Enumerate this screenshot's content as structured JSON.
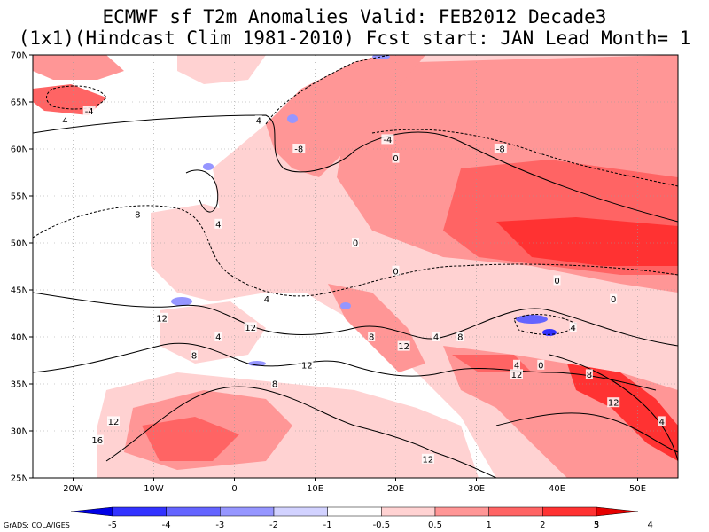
{
  "title": {
    "line1": "ECMWF sf T2m Anomalies Valid: FEB2012 Decade3",
    "line2": "(1x1)(Hindcast Clim 1981-2010) Fcst start: JAN  Lead Month= 1"
  },
  "map": {
    "lon_range": [
      -25,
      55
    ],
    "lat_range": [
      25,
      70
    ],
    "lon_ticks": [
      {
        "lon": -20,
        "label": "20W"
      },
      {
        "lon": -10,
        "label": "10W"
      },
      {
        "lon": 0,
        "label": "0"
      },
      {
        "lon": 10,
        "label": "10E"
      },
      {
        "lon": 20,
        "label": "20E"
      },
      {
        "lon": 30,
        "label": "30E"
      },
      {
        "lon": 40,
        "label": "40E"
      },
      {
        "lon": 50,
        "label": "50E"
      }
    ],
    "lat_ticks": [
      {
        "lat": 70,
        "label": "70N"
      },
      {
        "lat": 65,
        "label": "65N"
      },
      {
        "lat": 60,
        "label": "60N"
      },
      {
        "lat": 55,
        "label": "55N"
      },
      {
        "lat": 50,
        "label": "50N"
      },
      {
        "lat": 45,
        "label": "45N"
      },
      {
        "lat": 40,
        "label": "40N"
      },
      {
        "lat": 35,
        "label": "35N"
      },
      {
        "lat": 30,
        "label": "30N"
      },
      {
        "lat": 25,
        "label": "25N"
      }
    ],
    "grid": "dotted",
    "contour_labels": [
      {
        "lon": -18,
        "lat": 64,
        "text": "-4"
      },
      {
        "lon": -21,
        "lat": 63,
        "text": "4"
      },
      {
        "lon": 3,
        "lat": 63,
        "text": "4"
      },
      {
        "lon": 8,
        "lat": 60,
        "text": "-8"
      },
      {
        "lon": 19,
        "lat": 61,
        "text": "-4"
      },
      {
        "lon": 33,
        "lat": 60,
        "text": "-8"
      },
      {
        "lon": 20,
        "lat": 59,
        "text": "0"
      },
      {
        "lon": -12,
        "lat": 53,
        "text": "8"
      },
      {
        "lon": -2,
        "lat": 52,
        "text": "4"
      },
      {
        "lon": 15,
        "lat": 50,
        "text": "0"
      },
      {
        "lon": 20,
        "lat": 47,
        "text": "0"
      },
      {
        "lon": 40,
        "lat": 46,
        "text": "0"
      },
      {
        "lon": 47,
        "lat": 44,
        "text": "0"
      },
      {
        "lon": 4,
        "lat": 44,
        "text": "4"
      },
      {
        "lon": -9,
        "lat": 42,
        "text": "12"
      },
      {
        "lon": 2,
        "lat": 41,
        "text": "12"
      },
      {
        "lon": -2,
        "lat": 40,
        "text": "4"
      },
      {
        "lon": 17,
        "lat": 40,
        "text": "8"
      },
      {
        "lon": 21,
        "lat": 39,
        "text": "12"
      },
      {
        "lon": 25,
        "lat": 40,
        "text": "4"
      },
      {
        "lon": 28,
        "lat": 40,
        "text": "8"
      },
      {
        "lon": 42,
        "lat": 41,
        "text": "4"
      },
      {
        "lon": -5,
        "lat": 38,
        "text": "8"
      },
      {
        "lon": 9,
        "lat": 37,
        "text": "12"
      },
      {
        "lon": 35,
        "lat": 37,
        "text": "4"
      },
      {
        "lon": 38,
        "lat": 37,
        "text": "0"
      },
      {
        "lon": 44,
        "lat": 36,
        "text": "8"
      },
      {
        "lon": 35,
        "lat": 36,
        "text": "12"
      },
      {
        "lon": 5,
        "lat": 35,
        "text": "8"
      },
      {
        "lon": 47,
        "lat": 33,
        "text": "12"
      },
      {
        "lon": 53,
        "lat": 31,
        "text": "4"
      },
      {
        "lon": -15,
        "lat": 31,
        "text": "12"
      },
      {
        "lon": -17,
        "lat": 29,
        "text": "16"
      },
      {
        "lon": 24,
        "lat": 27,
        "text": "12"
      }
    ]
  },
  "colorbar": {
    "colors": [
      "#0000e6",
      "#3232ff",
      "#6464ff",
      "#9696ff",
      "#d2d2ff",
      "#ffffff",
      "#ffd2d2",
      "#ff9696",
      "#ff6464",
      "#ff3232",
      "#e60000"
    ],
    "labels": [
      "-5",
      "-4",
      "-3",
      "-2",
      "-1",
      "-0.5",
      "0.5",
      "1",
      "2",
      "3",
      "4",
      "5"
    ]
  },
  "credit": "GrADS: COLA/IGES"
}
